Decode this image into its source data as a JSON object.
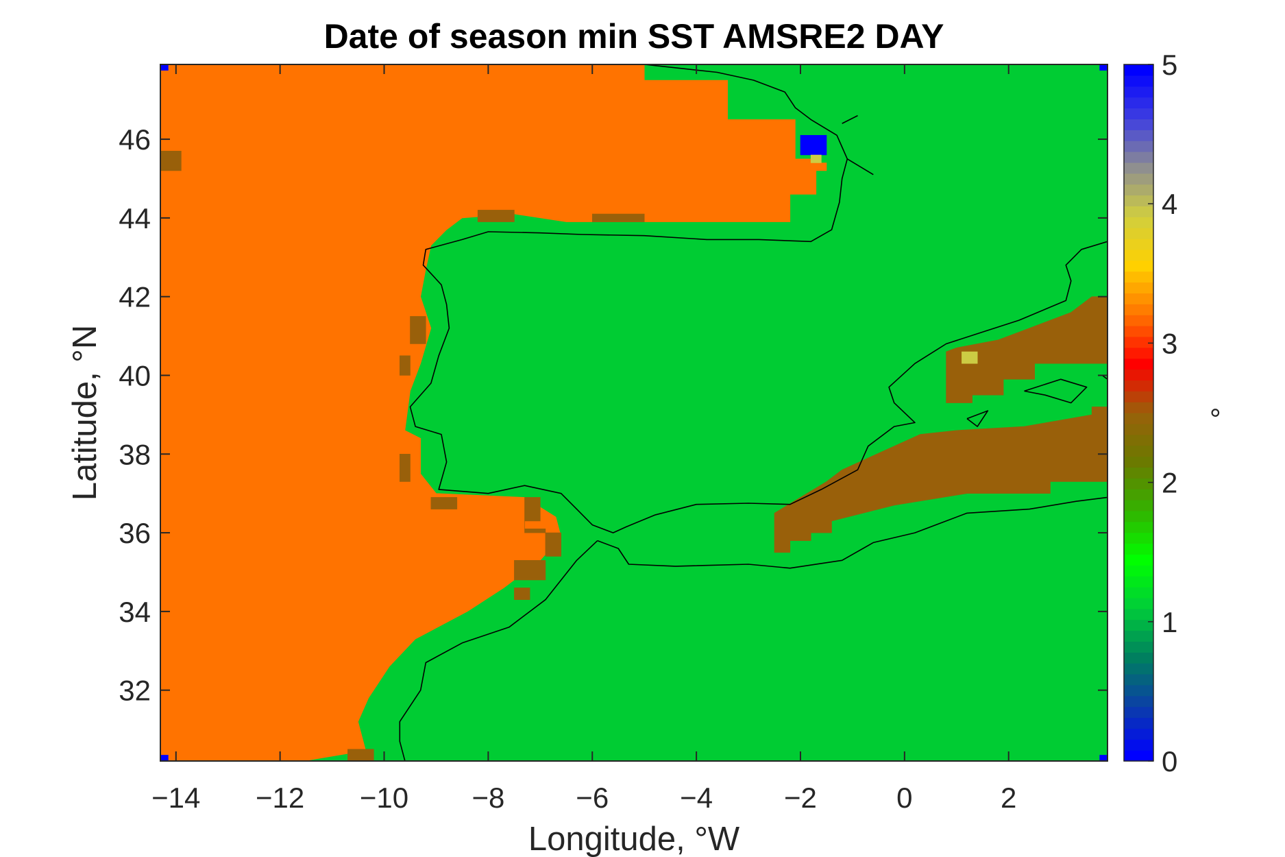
{
  "chart_data": {
    "type": "heatmap",
    "title": "Date of season min SST AMSRE2 DAY",
    "xlabel": "Longitude, °W",
    "ylabel": "Latitude, °N",
    "colorbar_label": "°",
    "xlim": [
      -14.3,
      3.9
    ],
    "ylim": [
      30.2,
      47.9
    ],
    "xticks": [
      -14,
      -12,
      -10,
      -8,
      -6,
      -4,
      -2,
      0,
      2
    ],
    "yticks": [
      32,
      34,
      36,
      38,
      40,
      42,
      44,
      46
    ],
    "clim": [
      0,
      5
    ],
    "cticks": [
      0,
      1,
      2,
      3,
      4,
      5
    ],
    "colorbar_colors": [
      "#0000ff",
      "#0b3ea8",
      "#007f5f",
      "#00cc3a",
      "#00ff00",
      "#33b300",
      "#6b7a00",
      "#99610a",
      "#ff0000",
      "#ff7300",
      "#ffd000",
      "#d1cf3e",
      "#8f8f8f",
      "#3f3fe0",
      "#0000ff"
    ],
    "values_legend": {
      "1": "#00cc33",
      "2": "#99600a",
      "3": "#ff7300",
      "5": "#0000ff"
    },
    "regions": [
      {
        "value": 3,
        "polygon": [
          [
            -14.3,
            47.9
          ],
          [
            -5.0,
            47.9
          ],
          [
            -5.0,
            47.5
          ],
          [
            -3.4,
            47.5
          ],
          [
            -3.4,
            46.5
          ],
          [
            -2.1,
            46.5
          ],
          [
            -2.1,
            45.5
          ],
          [
            -1.7,
            45.5
          ],
          [
            -1.7,
            44.6
          ],
          [
            -2.2,
            44.6
          ],
          [
            -2.2,
            43.9
          ],
          [
            -6.5,
            43.9
          ],
          [
            -7.5,
            44.1
          ],
          [
            -8.5,
            44.0
          ],
          [
            -8.8,
            43.7
          ],
          [
            -9.1,
            43.3
          ],
          [
            -9.2,
            42.7
          ],
          [
            -9.3,
            42.0
          ],
          [
            -9.1,
            41.2
          ],
          [
            -9.3,
            40.3
          ],
          [
            -9.5,
            39.6
          ],
          [
            -9.6,
            38.6
          ],
          [
            -9.3,
            38.4
          ],
          [
            -9.3,
            37.5
          ],
          [
            -9.0,
            37.0
          ],
          [
            -7.3,
            36.9
          ],
          [
            -6.7,
            36.4
          ],
          [
            -6.6,
            35.9
          ],
          [
            -7.0,
            35.3
          ],
          [
            -7.7,
            34.6
          ],
          [
            -8.4,
            34.0
          ],
          [
            -9.4,
            33.3
          ],
          [
            -9.9,
            32.6
          ],
          [
            -10.3,
            31.8
          ],
          [
            -10.5,
            31.2
          ],
          [
            -10.3,
            30.2
          ],
          [
            -14.3,
            30.2
          ]
        ]
      },
      {
        "value": 1,
        "polygon": [
          [
            -14.3,
            30.2
          ],
          [
            -11.5,
            30.2
          ],
          [
            -10.6,
            30.4
          ],
          [
            -10.7,
            30.2
          ],
          [
            -14.3,
            30.2
          ]
        ]
      },
      {
        "value": 2,
        "polygon": [
          [
            -14.3,
            45.2
          ],
          [
            -13.9,
            45.2
          ],
          [
            -13.9,
            45.7
          ],
          [
            -14.3,
            45.7
          ]
        ]
      },
      {
        "value": 2,
        "polygon": [
          [
            -8.2,
            43.9
          ],
          [
            -7.5,
            43.9
          ],
          [
            -7.5,
            44.2
          ],
          [
            -8.2,
            44.2
          ]
        ]
      },
      {
        "value": 2,
        "polygon": [
          [
            -6.0,
            43.9
          ],
          [
            -5.0,
            43.9
          ],
          [
            -5.0,
            44.1
          ],
          [
            -6.0,
            44.1
          ]
        ]
      },
      {
        "value": 2,
        "polygon": [
          [
            -9.5,
            40.8
          ],
          [
            -9.2,
            40.8
          ],
          [
            -9.2,
            41.5
          ],
          [
            -9.5,
            41.5
          ]
        ]
      },
      {
        "value": 2,
        "polygon": [
          [
            -9.7,
            40.0
          ],
          [
            -9.5,
            40.0
          ],
          [
            -9.5,
            40.5
          ],
          [
            -9.7,
            40.5
          ]
        ]
      },
      {
        "value": 2,
        "polygon": [
          [
            -9.7,
            37.3
          ],
          [
            -9.5,
            37.3
          ],
          [
            -9.5,
            38.0
          ],
          [
            -9.7,
            38.0
          ]
        ]
      },
      {
        "value": 2,
        "polygon": [
          [
            -9.1,
            36.6
          ],
          [
            -8.6,
            36.6
          ],
          [
            -8.6,
            36.9
          ],
          [
            -9.1,
            36.9
          ]
        ]
      },
      {
        "value": 2,
        "polygon": [
          [
            -7.3,
            36.0
          ],
          [
            -6.6,
            36.0
          ],
          [
            -6.6,
            35.4
          ],
          [
            -6.9,
            35.4
          ],
          [
            -6.9,
            36.1
          ],
          [
            -7.3,
            36.1
          ],
          [
            -7.3,
            36.9
          ],
          [
            -7.0,
            36.9
          ],
          [
            -7.0,
            36.3
          ],
          [
            -7.3,
            36.3
          ]
        ]
      },
      {
        "value": 2,
        "polygon": [
          [
            -7.5,
            34.8
          ],
          [
            -6.9,
            34.8
          ],
          [
            -6.9,
            35.3
          ],
          [
            -7.5,
            35.3
          ]
        ]
      },
      {
        "value": 2,
        "polygon": [
          [
            -7.5,
            34.3
          ],
          [
            -7.2,
            34.3
          ],
          [
            -7.2,
            34.6
          ],
          [
            -7.5,
            34.6
          ]
        ]
      },
      {
        "value": 2,
        "polygon": [
          [
            -10.7,
            30.2
          ],
          [
            -10.2,
            30.2
          ],
          [
            -10.2,
            30.5
          ],
          [
            -10.7,
            30.5
          ]
        ]
      },
      {
        "value": 2,
        "polygon": [
          [
            0.8,
            39.3
          ],
          [
            1.3,
            39.3
          ],
          [
            1.3,
            39.5
          ],
          [
            1.9,
            39.5
          ],
          [
            1.9,
            39.9
          ],
          [
            2.5,
            39.9
          ],
          [
            2.5,
            40.3
          ],
          [
            3.9,
            40.3
          ],
          [
            3.9,
            42.0
          ],
          [
            3.6,
            42.0
          ],
          [
            3.2,
            41.6
          ],
          [
            2.4,
            41.2
          ],
          [
            1.8,
            40.9
          ],
          [
            1.0,
            40.7
          ],
          [
            0.8,
            40.6
          ]
        ]
      },
      {
        "value": 2,
        "polygon": [
          [
            -2.5,
            35.5
          ],
          [
            -2.2,
            35.5
          ],
          [
            -2.2,
            35.8
          ],
          [
            -1.8,
            35.8
          ],
          [
            -1.8,
            36.0
          ],
          [
            -1.4,
            36.0
          ],
          [
            -1.4,
            36.3
          ],
          [
            -0.2,
            36.7
          ],
          [
            1.2,
            37.0
          ],
          [
            2.8,
            37.0
          ],
          [
            2.8,
            37.3
          ],
          [
            3.9,
            37.3
          ],
          [
            3.9,
            39.2
          ],
          [
            3.6,
            39.2
          ],
          [
            3.6,
            39.0
          ],
          [
            2.3,
            38.7
          ],
          [
            1.0,
            38.6
          ],
          [
            0.3,
            38.5
          ],
          [
            -0.7,
            37.9
          ],
          [
            -1.2,
            37.6
          ],
          [
            -1.5,
            37.3
          ],
          [
            -2.0,
            36.9
          ],
          [
            -2.5,
            36.5
          ]
        ]
      },
      {
        "value": 5,
        "polygon": [
          [
            -2.0,
            45.6
          ],
          [
            -1.5,
            45.6
          ],
          [
            -1.5,
            46.1
          ],
          [
            -2.0,
            46.1
          ]
        ]
      },
      {
        "value": 3,
        "polygon": [
          [
            -1.8,
            45.2
          ],
          [
            -1.5,
            45.2
          ],
          [
            -1.5,
            45.4
          ],
          [
            -1.8,
            45.4
          ]
        ]
      },
      {
        "value": 4,
        "polygon": [
          [
            -1.8,
            45.4
          ],
          [
            -1.6,
            45.4
          ],
          [
            -1.6,
            45.6
          ],
          [
            -1.8,
            45.6
          ]
        ]
      },
      {
        "value": 4,
        "polygon": [
          [
            1.1,
            40.3
          ],
          [
            1.4,
            40.3
          ],
          [
            1.4,
            40.6
          ],
          [
            1.1,
            40.6
          ]
        ]
      },
      {
        "value": 5,
        "polygon": [
          [
            -14.3,
            47.75
          ],
          [
            -14.15,
            47.75
          ],
          [
            -14.15,
            47.9
          ],
          [
            -14.3,
            47.9
          ]
        ]
      },
      {
        "value": 5,
        "polygon": [
          [
            3.75,
            47.75
          ],
          [
            3.9,
            47.75
          ],
          [
            3.9,
            47.9
          ],
          [
            3.75,
            47.9
          ]
        ]
      },
      {
        "value": 5,
        "polygon": [
          [
            -14.3,
            30.2
          ],
          [
            -14.15,
            30.2
          ],
          [
            -14.15,
            30.35
          ],
          [
            -14.3,
            30.35
          ]
        ]
      },
      {
        "value": 5,
        "polygon": [
          [
            3.75,
            30.2
          ],
          [
            3.9,
            30.2
          ],
          [
            3.9,
            30.35
          ],
          [
            3.75,
            30.35
          ]
        ]
      }
    ],
    "coastlines": [
      [
        [
          -5.0,
          47.9
        ],
        [
          -4.3,
          47.8
        ],
        [
          -3.6,
          47.7
        ],
        [
          -2.9,
          47.5
        ],
        [
          -2.3,
          47.2
        ],
        [
          -2.1,
          46.8
        ],
        [
          -1.8,
          46.5
        ],
        [
          -1.3,
          46.1
        ],
        [
          -1.2,
          45.8
        ],
        [
          -1.1,
          45.5
        ],
        [
          -1.2,
          45.0
        ],
        [
          -1.25,
          44.4
        ],
        [
          -1.4,
          43.7
        ],
        [
          -1.8,
          43.4
        ],
        [
          -2.8,
          43.45
        ],
        [
          -3.8,
          43.45
        ],
        [
          -5.0,
          43.55
        ],
        [
          -6.2,
          43.58
        ],
        [
          -7.0,
          43.62
        ],
        [
          -8.0,
          43.65
        ],
        [
          -8.5,
          43.45
        ],
        [
          -9.2,
          43.2
        ],
        [
          -9.25,
          42.8
        ],
        [
          -8.9,
          42.3
        ],
        [
          -8.8,
          41.8
        ],
        [
          -8.75,
          41.2
        ],
        [
          -8.95,
          40.5
        ],
        [
          -9.1,
          39.8
        ],
        [
          -9.5,
          39.2
        ],
        [
          -9.4,
          38.7
        ],
        [
          -8.9,
          38.5
        ],
        [
          -8.8,
          37.8
        ],
        [
          -8.95,
          37.1
        ],
        [
          -8.0,
          37.0
        ],
        [
          -7.3,
          37.2
        ],
        [
          -6.6,
          37.0
        ],
        [
          -6.3,
          36.6
        ],
        [
          -6.0,
          36.2
        ],
        [
          -5.6,
          36.0
        ],
        [
          -5.35,
          36.15
        ],
        [
          -4.8,
          36.45
        ],
        [
          -4.0,
          36.72
        ],
        [
          -3.0,
          36.75
        ],
        [
          -2.2,
          36.72
        ],
        [
          -1.6,
          37.1
        ],
        [
          -0.9,
          37.6
        ],
        [
          -0.7,
          38.2
        ],
        [
          -0.2,
          38.7
        ],
        [
          0.2,
          38.8
        ],
        [
          -0.2,
          39.3
        ],
        [
          -0.3,
          39.7
        ],
        [
          0.2,
          40.3
        ],
        [
          0.8,
          40.8
        ],
        [
          1.5,
          41.1
        ],
        [
          2.2,
          41.4
        ],
        [
          3.1,
          41.9
        ],
        [
          3.2,
          42.4
        ],
        [
          3.1,
          42.8
        ],
        [
          3.4,
          43.2
        ],
        [
          3.9,
          43.4
        ]
      ],
      [
        [
          -1.1,
          45.5
        ],
        [
          -0.6,
          45.1
        ]
      ],
      [
        [
          -1.2,
          46.4
        ],
        [
          -0.9,
          46.6
        ]
      ],
      [
        [
          -5.9,
          35.8
        ],
        [
          -5.5,
          35.6
        ],
        [
          -5.3,
          35.2
        ],
        [
          -4.4,
          35.15
        ],
        [
          -3.0,
          35.2
        ],
        [
          -2.2,
          35.1
        ],
        [
          -1.2,
          35.3
        ],
        [
          -0.6,
          35.75
        ],
        [
          0.2,
          36.0
        ],
        [
          1.2,
          36.5
        ],
        [
          2.4,
          36.6
        ],
        [
          3.3,
          36.8
        ],
        [
          3.9,
          36.9
        ]
      ],
      [
        [
          -5.9,
          35.8
        ],
        [
          -6.3,
          35.3
        ],
        [
          -6.9,
          34.3
        ],
        [
          -7.6,
          33.6
        ],
        [
          -8.5,
          33.2
        ],
        [
          -9.2,
          32.7
        ],
        [
          -9.3,
          32.0
        ],
        [
          -9.7,
          31.2
        ],
        [
          -9.7,
          30.7
        ],
        [
          -9.6,
          30.2
        ]
      ],
      [
        [
          1.2,
          38.9
        ],
        [
          1.6,
          39.1
        ],
        [
          1.4,
          38.7
        ],
        [
          1.2,
          38.9
        ]
      ],
      [
        [
          2.3,
          39.6
        ],
        [
          3.0,
          39.9
        ],
        [
          3.5,
          39.7
        ],
        [
          3.2,
          39.3
        ],
        [
          2.7,
          39.5
        ],
        [
          2.3,
          39.6
        ]
      ],
      [
        [
          3.8,
          40.0
        ],
        [
          3.9,
          39.9
        ]
      ]
    ]
  }
}
